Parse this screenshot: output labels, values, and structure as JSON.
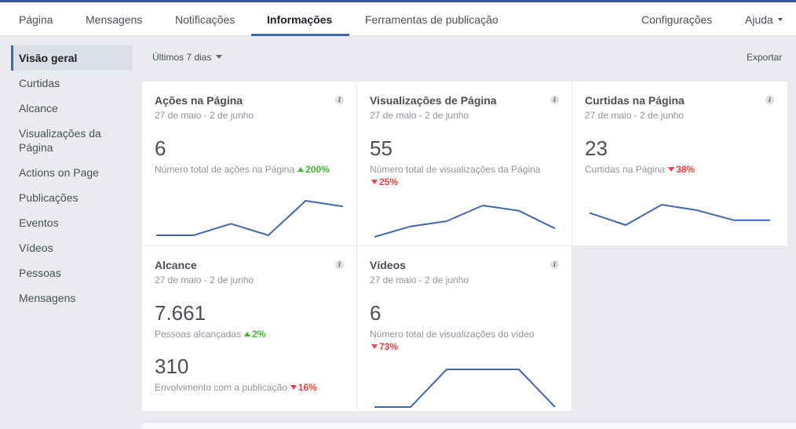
{
  "topnav": {
    "items": [
      "Página",
      "Mensagens",
      "Notificações",
      "Informações",
      "Ferramentas de publicação"
    ],
    "active": "Informações",
    "settings": "Configurações",
    "help": "Ajuda"
  },
  "sidebar": {
    "items": [
      "Visão geral",
      "Curtidas",
      "Alcance",
      "Visualizações da Página",
      "Actions on Page",
      "Publicações",
      "Eventos",
      "Vídeos",
      "Pessoas",
      "Mensagens"
    ],
    "active": "Visão geral"
  },
  "toolbar": {
    "range": "Últimos 7 dias",
    "export": "Exportar"
  },
  "colors": {
    "accent": "#4267b2",
    "up": "#42b72a",
    "down": "#fa3e3e",
    "spark": "#4267b2"
  },
  "cards": {
    "actions": {
      "title": "Ações na Página",
      "date": "27 de maio - 2 de junho",
      "value": "6",
      "label": "Número total de ações na Página",
      "trend": "200%",
      "direction": "up",
      "spark": [
        0,
        0,
        1,
        0,
        3,
        2.5
      ]
    },
    "views": {
      "title": "Visualizações de Página",
      "date": "27 de maio - 2 de junho",
      "value": "55",
      "label": "Número total de visualizações da Página",
      "trend": "25%",
      "direction": "down",
      "spark": [
        0,
        1,
        1.5,
        3,
        2.5,
        0.8
      ]
    },
    "likes": {
      "title": "Curtidas na Página",
      "date": "27 de maio - 2 de junho",
      "value": "23",
      "label": "Curtidas na Página",
      "trend": "38%",
      "direction": "down",
      "spark": [
        2,
        0.5,
        3,
        2.3,
        1.1,
        1.1
      ]
    },
    "reach": {
      "title": "Alcance",
      "date": "27 de maio - 2 de junho",
      "value": "7.661",
      "label": "Pessoas alcançadas",
      "trend": "2%",
      "direction": "up",
      "value2": "310",
      "label2": "Envolvimento com a publicação",
      "trend2": "16%",
      "direction2": "down"
    },
    "videos": {
      "title": "Vídeos",
      "date": "27 de maio - 2 de junho",
      "value": "6",
      "label": "Número total de visualizações do vídeo",
      "trend": "73%",
      "direction": "down",
      "spark": [
        0,
        0,
        2,
        2,
        2,
        0
      ]
    }
  }
}
